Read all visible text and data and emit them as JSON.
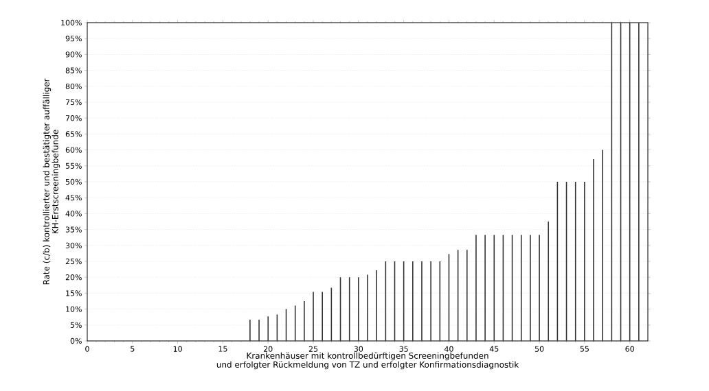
{
  "chart_data": {
    "type": "bar",
    "xlabel": "Krankenhäuser mit kontrollbedürftigen Screeningbefunden\nund erfolgter Rückmeldung von TZ und erfolgter Konfirmationsdiagnostik",
    "ylabel": "Rate (c/b) kontrollierter und bestätigter auffälliger\nKH-Erstscreeningbefunde",
    "x": [
      18,
      19,
      20,
      21,
      22,
      23,
      24,
      25,
      26,
      27,
      28,
      29,
      30,
      31,
      32,
      33,
      34,
      35,
      36,
      37,
      38,
      39,
      40,
      41,
      42,
      43,
      44,
      45,
      46,
      47,
      48,
      49,
      50,
      51,
      52,
      53,
      54,
      55,
      56,
      57,
      58,
      59,
      60,
      61
    ],
    "values": [
      6.7,
      6.7,
      7.7,
      8.3,
      10,
      11.1,
      12.5,
      15.4,
      15.4,
      16.7,
      20,
      20,
      20,
      20.8,
      22.2,
      25,
      25,
      25,
      25,
      25,
      25,
      25,
      27.3,
      28.6,
      28.6,
      33.3,
      33.3,
      33.3,
      33.3,
      33.3,
      33.3,
      33.3,
      33.3,
      37.5,
      50,
      50,
      50,
      50,
      57.1,
      60,
      100,
      100,
      100,
      100
    ],
    "color": "#333333",
    "xlim": [
      0,
      62
    ],
    "xticks": [
      0,
      5,
      10,
      15,
      20,
      25,
      30,
      35,
      40,
      45,
      50,
      55,
      60
    ],
    "ylim": [
      0,
      100
    ],
    "yticks": [
      {
        "value": 0,
        "label": "0%"
      },
      {
        "value": 5,
        "label": "5%"
      },
      {
        "value": 10,
        "label": "10%"
      },
      {
        "value": 15,
        "label": "15%"
      },
      {
        "value": 20,
        "label": "20%"
      },
      {
        "value": 25,
        "label": "25%"
      },
      {
        "value": 30,
        "label": "30%"
      },
      {
        "value": 35,
        "label": "35%"
      },
      {
        "value": 40,
        "label": "40%"
      },
      {
        "value": 45,
        "label": "45%"
      },
      {
        "value": 50,
        "label": "50%"
      },
      {
        "value": 55,
        "label": "55%"
      },
      {
        "value": 60,
        "label": "60%"
      },
      {
        "value": 65,
        "label": "65%"
      },
      {
        "value": 70,
        "label": "70%"
      },
      {
        "value": 75,
        "label": "75%"
      },
      {
        "value": 80,
        "label": "80%"
      },
      {
        "value": 85,
        "label": "85%"
      },
      {
        "value": 90,
        "label": "90%"
      },
      {
        "value": 95,
        "label": "95%"
      },
      {
        "value": 100,
        "label": "100%"
      }
    ],
    "grid": "y"
  }
}
